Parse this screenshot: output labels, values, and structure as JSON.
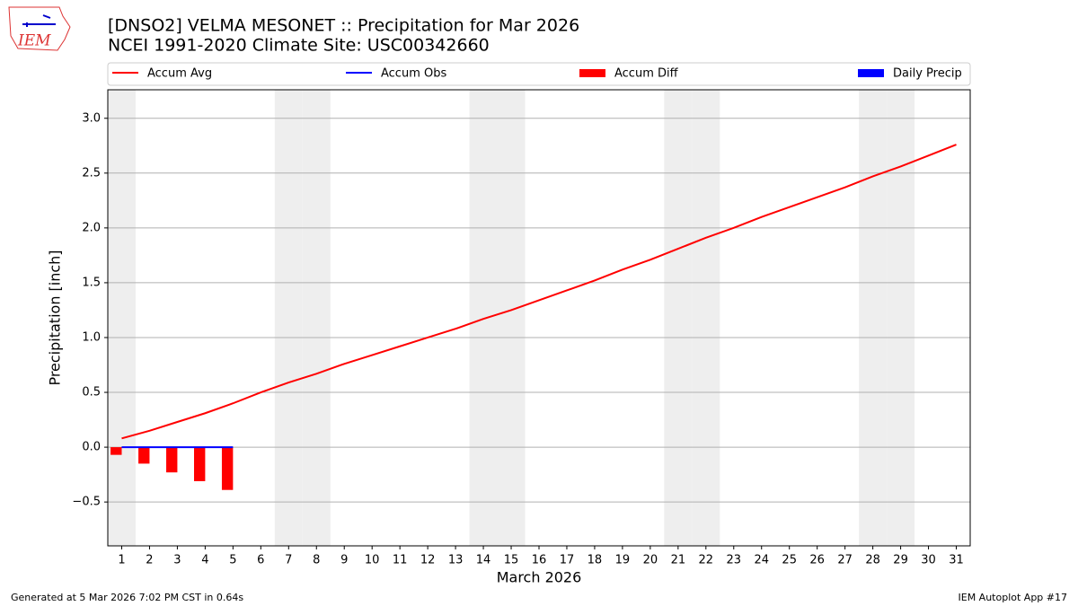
{
  "logo_text": "IEM",
  "chart_data": {
    "type": "line",
    "title": "[DNSO2] VELMA MESONET :: Precipitation for Mar 2026",
    "subtitle": "NCEI 1991-2020 Climate Site: USC00342660",
    "y_label": "Precipitation [inch]",
    "x_label": "March 2026",
    "footer_left": "Generated at 5 Mar 2026 7:02 PM CST in 0.64s",
    "footer_right": "IEM Autoplot App #17",
    "x": [
      1,
      2,
      3,
      4,
      5,
      6,
      7,
      8,
      9,
      10,
      11,
      12,
      13,
      14,
      15,
      16,
      17,
      18,
      19,
      20,
      21,
      22,
      23,
      24,
      25,
      26,
      27,
      28,
      29,
      30,
      31
    ],
    "xlim": [
      0.5,
      31.5
    ],
    "xticks": [
      1,
      2,
      3,
      4,
      5,
      6,
      7,
      8,
      9,
      10,
      11,
      12,
      13,
      14,
      15,
      16,
      17,
      18,
      19,
      20,
      21,
      22,
      23,
      24,
      25,
      26,
      27,
      28,
      29,
      30,
      31
    ],
    "ylim": [
      -0.9,
      3.26
    ],
    "yticks": [
      {
        "value": -0.5,
        "label": "−0.5"
      },
      {
        "value": 0,
        "label": "0.0"
      },
      0.5,
      {
        "value": 1,
        "label": "1.0"
      },
      1.5,
      {
        "value": 2,
        "label": "2.0"
      },
      2.5,
      {
        "value": 3,
        "label": "3.0"
      }
    ],
    "grid": true,
    "shaded_days": [
      1,
      7,
      8,
      14,
      15,
      21,
      22,
      28,
      29
    ],
    "series": [
      {
        "name": "Accum Avg",
        "type": "line",
        "color": "#ff0000",
        "values": [
          0.08,
          0.15,
          0.23,
          0.31,
          0.4,
          0.5,
          0.59,
          0.67,
          0.76,
          0.84,
          0.92,
          1.0,
          1.08,
          1.17,
          1.25,
          1.34,
          1.43,
          1.52,
          1.62,
          1.71,
          1.81,
          1.91,
          2.0,
          2.1,
          2.19,
          2.28,
          2.37,
          2.47,
          2.56,
          2.66,
          2.76
        ]
      },
      {
        "name": "Accum Obs",
        "type": "line",
        "color": "#0000ff",
        "values": [
          0,
          0,
          0,
          0,
          0,
          null,
          null,
          null,
          null,
          null,
          null,
          null,
          null,
          null,
          null,
          null,
          null,
          null,
          null,
          null,
          null,
          null,
          null,
          null,
          null,
          null,
          null,
          null,
          null,
          null,
          null
        ]
      },
      {
        "name": "Accum Diff",
        "type": "bar",
        "color": "#ff0000",
        "values": [
          -0.07,
          -0.15,
          -0.23,
          -0.31,
          -0.39,
          null,
          null,
          null,
          null,
          null,
          null,
          null,
          null,
          null,
          null,
          null,
          null,
          null,
          null,
          null,
          null,
          null,
          null,
          null,
          null,
          null,
          null,
          null,
          null,
          null,
          null
        ]
      },
      {
        "name": "Daily Precip",
        "type": "bar",
        "color": "#0000ff",
        "values": [
          0,
          0,
          0,
          0,
          0,
          null,
          null,
          null,
          null,
          null,
          null,
          null,
          null,
          null,
          null,
          null,
          null,
          null,
          null,
          null,
          null,
          null,
          null,
          null,
          null,
          null,
          null,
          null,
          null,
          null,
          null
        ]
      }
    ]
  }
}
